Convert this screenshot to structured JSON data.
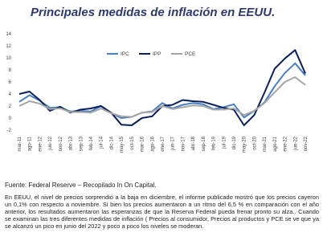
{
  "chart_data": {
    "type": "line",
    "title": "Principales medidas de inflación en EEUU.",
    "categories": [
      "mar-11",
      "ago-11",
      "ene-12",
      "jun-12",
      "nov-12",
      "abr-13",
      "sep-13",
      "feb-14",
      "jul-14",
      "dic-14",
      "may-15",
      "oct-15",
      "mar-16",
      "ago-16",
      "ene-17",
      "jun-17",
      "nov-17",
      "abr-18",
      "sep-18",
      "feb-19",
      "jul-19",
      "dic-19",
      "may-20",
      "oct-20",
      "mar-21",
      "ago-21",
      "ene-22",
      "jun-22",
      "nov-22"
    ],
    "series": [
      {
        "name": "IPC",
        "color": "#4a7fc1",
        "values": [
          2.7,
          3.8,
          2.9,
          1.7,
          1.8,
          1.1,
          1.2,
          1.1,
          2.0,
          0.8,
          0.0,
          0.2,
          0.9,
          1.1,
          2.5,
          1.6,
          2.2,
          2.5,
          2.3,
          1.5,
          1.8,
          2.3,
          0.1,
          1.2,
          2.6,
          5.3,
          7.5,
          9.1,
          7.1
        ]
      },
      {
        "name": "IPP",
        "color": "#0b1f5c",
        "values": [
          4.0,
          4.4,
          3.0,
          1.2,
          1.9,
          0.9,
          1.4,
          1.6,
          2.0,
          0.9,
          -1.1,
          -1.2,
          0.0,
          0.3,
          2.0,
          2.2,
          3.0,
          2.8,
          2.7,
          2.2,
          1.7,
          1.4,
          -1.2,
          0.5,
          4.2,
          8.2,
          9.9,
          11.3,
          7.4
        ]
      },
      {
        "name": "PCE",
        "color": "#a6a6a6",
        "values": [
          2.0,
          2.8,
          2.4,
          1.5,
          1.6,
          1.0,
          1.0,
          0.9,
          1.6,
          0.8,
          0.3,
          0.2,
          0.9,
          1.0,
          2.0,
          1.5,
          1.8,
          2.1,
          2.0,
          1.4,
          1.4,
          1.6,
          0.5,
          1.2,
          2.5,
          4.3,
          6.0,
          6.8,
          5.5
        ]
      }
    ],
    "ylim": [
      -2,
      14
    ],
    "yticks": [
      -2,
      0,
      2,
      4,
      6,
      8,
      10,
      12,
      14
    ]
  },
  "source": "Fuente: Federal Reserve – Recopilado In On Capital.",
  "paragraph": "En EEUU, el nivel de precios sorprendió a la baja en diciembre, el informe publicado  mostró que los precios cayeron un 0,1% con respecto a noviembre. Si bien los precios aumentaron a un ritmo del 6,5 % en comparación con el año anterior, los resultados aumentaron las esperanzas de que la Reserva Federal pueda frenar pronto su alza.. Cuando se examinan las tres diferentes medidas de inflación  ( Precios al consumidor, Precios al productos y PCE se ve que ya se alcanzó un pico en junio del 2022 y poco a poco los niveles se moderan."
}
